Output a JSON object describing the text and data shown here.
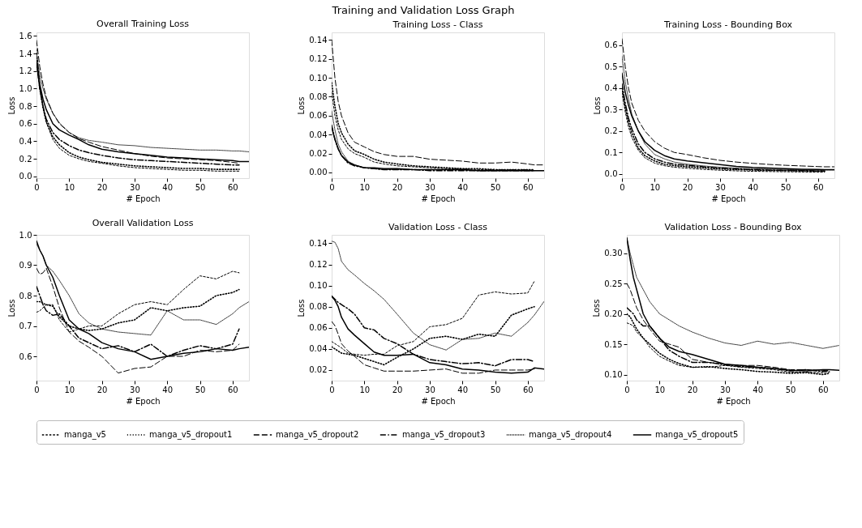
{
  "chart_data": [
    {
      "type": "line",
      "title": "Overall Training Loss",
      "xlabel": "# Epoch",
      "ylabel": "Loss",
      "annotations": [
        "Training and Validation Loss Graph"
      ],
      "legend": "bottom",
      "x": [
        0,
        1,
        2,
        3,
        5,
        7,
        10,
        13,
        16,
        20,
        25,
        30,
        35,
        40,
        45,
        50,
        55,
        60,
        62,
        65
      ],
      "xlim": [
        0,
        65
      ],
      "xticks": [
        0,
        10,
        20,
        30,
        40,
        50,
        60
      ],
      "ylim": [
        -0.02,
        1.64
      ],
      "yticks": [
        {
          "value": 0,
          "label": "0.0"
        },
        0.2,
        0.4,
        0.6,
        0.8,
        {
          "value": 1,
          "label": "1.0"
        },
        1.2,
        1.4,
        1.6
      ],
      "series": [
        {
          "name": "manga_v5",
          "color": "#000000",
          "line_style": "dashed",
          "values": [
            1.45,
            1.05,
            0.8,
            0.62,
            0.42,
            0.32,
            0.24,
            0.2,
            0.17,
            0.15,
            0.12,
            0.1,
            0.09,
            0.08,
            0.07,
            0.07,
            0.06,
            0.06,
            0.06,
            null
          ]
        },
        {
          "name": "manga_v5_dropout1",
          "color": "#000000",
          "line_style": "dotted",
          "values": [
            1.35,
            1.0,
            0.78,
            0.62,
            0.45,
            0.36,
            0.27,
            0.22,
            0.19,
            0.16,
            0.14,
            0.12,
            0.11,
            0.1,
            0.09,
            0.09,
            0.08,
            0.08,
            0.08,
            null
          ]
        },
        {
          "name": "manga_v5_dropout2",
          "color": "#000000",
          "line_style": "longdash",
          "values": [
            1.55,
            1.25,
            1.05,
            0.9,
            0.72,
            0.6,
            0.5,
            0.43,
            0.39,
            0.34,
            0.3,
            0.26,
            0.23,
            0.21,
            0.2,
            0.19,
            0.18,
            0.16,
            0.15,
            null
          ]
        },
        {
          "name": "manga_v5_dropout3",
          "color": "#000000",
          "line_style": "dashdot",
          "values": [
            1.3,
            1.0,
            0.8,
            0.65,
            0.5,
            0.42,
            0.35,
            0.3,
            0.27,
            0.24,
            0.21,
            0.19,
            0.18,
            0.17,
            0.16,
            0.15,
            0.14,
            0.13,
            0.13,
            null
          ]
        },
        {
          "name": "manga_v5_dropout4",
          "color": "#000000",
          "line_style": "finedotted",
          "values": [
            1.4,
            1.15,
            1.0,
            0.88,
            0.72,
            0.61,
            0.5,
            0.44,
            0.41,
            0.39,
            0.36,
            0.35,
            0.33,
            0.32,
            0.31,
            0.3,
            0.3,
            0.29,
            0.29,
            0.28
          ]
        },
        {
          "name": "manga_v5_dropout5",
          "color": "#000000",
          "line_style": "solid",
          "values": [
            1.3,
            1.05,
            0.88,
            0.76,
            0.6,
            0.53,
            0.47,
            0.42,
            0.36,
            0.31,
            0.28,
            0.26,
            0.24,
            0.22,
            0.21,
            0.2,
            0.19,
            0.18,
            0.17,
            0.17
          ]
        }
      ]
    },
    {
      "type": "line",
      "title": "Training Loss - Class",
      "xlabel": "# Epoch",
      "ylabel": "Loss",
      "x": [
        0,
        1,
        2,
        3,
        5,
        7,
        10,
        13,
        16,
        20,
        25,
        30,
        35,
        40,
        45,
        50,
        55,
        60,
        62,
        65
      ],
      "xlim": [
        0,
        65
      ],
      "xticks": [
        0,
        10,
        20,
        30,
        40,
        50,
        60
      ],
      "ylim": [
        -0.006,
        0.148
      ],
      "yticks": [
        {
          "value": 0,
          "label": "0.00"
        },
        {
          "value": 0.02,
          "label": "0.02"
        },
        {
          "value": 0.04,
          "label": "0.04"
        },
        {
          "value": 0.06,
          "label": "0.06"
        },
        {
          "value": 0.08,
          "label": "0.08"
        },
        {
          "value": 0.1,
          "label": "0.10"
        },
        {
          "value": 0.12,
          "label": "0.12"
        },
        {
          "value": 0.14,
          "label": "0.14"
        }
      ],
      "series": [
        {
          "name": "manga_v5",
          "color": "#000000",
          "line_style": "dashed",
          "values": [
            0.085,
            0.06,
            0.045,
            0.035,
            0.025,
            0.02,
            0.016,
            0.011,
            0.009,
            0.007,
            0.006,
            0.005,
            0.004,
            0.004,
            0.003,
            0.003,
            0.003,
            0.003,
            0.002,
            null
          ]
        },
        {
          "name": "manga_v5_dropout1",
          "color": "#000000",
          "line_style": "dotted",
          "values": [
            0.095,
            0.07,
            0.052,
            0.042,
            0.03,
            0.023,
            0.019,
            0.014,
            0.011,
            0.009,
            0.007,
            0.006,
            0.005,
            0.004,
            0.004,
            0.003,
            0.003,
            0.003,
            0.003,
            null
          ]
        },
        {
          "name": "manga_v5_dropout2",
          "color": "#000000",
          "line_style": "longdash",
          "values": [
            0.14,
            0.1,
            0.075,
            0.06,
            0.042,
            0.032,
            0.027,
            0.022,
            0.019,
            0.017,
            0.017,
            0.014,
            0.013,
            0.012,
            0.01,
            0.01,
            0.011,
            0.009,
            0.008,
            0.008
          ]
        },
        {
          "name": "manga_v5_dropout3",
          "color": "#000000",
          "line_style": "dashdot",
          "values": [
            0.05,
            0.035,
            0.025,
            0.018,
            0.01,
            0.007,
            0.005,
            0.004,
            0.003,
            0.003,
            0.003,
            0.002,
            0.002,
            0.002,
            0.002,
            0.002,
            0.002,
            0.002,
            0.002,
            null
          ]
        },
        {
          "name": "manga_v5_dropout4",
          "color": "#000000",
          "line_style": "finedotted",
          "values": [
            0.065,
            0.045,
            0.03,
            0.022,
            0.012,
            0.008,
            0.005,
            0.004,
            0.003,
            0.003,
            0.003,
            0.003,
            0.003,
            0.003,
            0.002,
            0.002,
            0.002,
            0.002,
            0.002,
            0.002
          ]
        },
        {
          "name": "manga_v5_dropout5",
          "color": "#000000",
          "line_style": "solid",
          "values": [
            0.048,
            0.035,
            0.025,
            0.018,
            0.011,
            0.008,
            0.005,
            0.005,
            0.004,
            0.004,
            0.003,
            0.003,
            0.003,
            0.003,
            0.002,
            0.002,
            0.002,
            0.002,
            0.002,
            0.002
          ]
        }
      ]
    },
    {
      "type": "line",
      "title": "Training Loss - Bounding Box",
      "xlabel": "# Epoch",
      "ylabel": "Loss",
      "x": [
        0,
        1,
        2,
        3,
        5,
        7,
        10,
        13,
        16,
        20,
        25,
        30,
        35,
        40,
        45,
        50,
        55,
        60,
        62,
        65
      ],
      "xlim": [
        0,
        65
      ],
      "xticks": [
        0,
        10,
        20,
        30,
        40,
        50,
        60
      ],
      "ylim": [
        -0.02,
        0.66
      ],
      "yticks": [
        {
          "value": 0,
          "label": "0.0"
        },
        0.1,
        0.2,
        0.3,
        0.4,
        0.5,
        0.6
      ],
      "series": [
        {
          "name": "manga_v5",
          "color": "#000000",
          "line_style": "dashed",
          "values": [
            0.38,
            0.29,
            0.22,
            0.17,
            0.11,
            0.075,
            0.05,
            0.038,
            0.031,
            0.026,
            0.021,
            0.017,
            0.014,
            0.012,
            0.011,
            0.01,
            0.009,
            0.008,
            0.008,
            null
          ]
        },
        {
          "name": "manga_v5_dropout1",
          "color": "#000000",
          "line_style": "dotted",
          "values": [
            0.4,
            0.31,
            0.24,
            0.19,
            0.12,
            0.085,
            0.06,
            0.045,
            0.038,
            0.033,
            0.028,
            0.023,
            0.02,
            0.018,
            0.016,
            0.015,
            0.014,
            0.013,
            0.013,
            null
          ]
        },
        {
          "name": "manga_v5_dropout2",
          "color": "#000000",
          "line_style": "longdash",
          "values": [
            0.63,
            0.5,
            0.4,
            0.33,
            0.25,
            0.2,
            0.15,
            0.12,
            0.1,
            0.09,
            0.075,
            0.063,
            0.055,
            0.049,
            0.044,
            0.04,
            0.037,
            0.034,
            0.033,
            0.033
          ]
        },
        {
          "name": "manga_v5_dropout3",
          "color": "#000000",
          "line_style": "dashdot",
          "values": [
            0.42,
            0.33,
            0.26,
            0.21,
            0.14,
            0.1,
            0.07,
            0.055,
            0.045,
            0.04,
            0.033,
            0.027,
            0.023,
            0.02,
            0.018,
            0.016,
            0.015,
            0.014,
            0.013,
            null
          ]
        },
        {
          "name": "manga_v5_dropout4",
          "color": "#000000",
          "line_style": "finedotted",
          "values": [
            0.55,
            0.43,
            0.35,
            0.28,
            0.2,
            0.14,
            0.09,
            0.07,
            0.055,
            0.045,
            0.037,
            0.031,
            0.027,
            0.024,
            0.022,
            0.02,
            0.019,
            0.018,
            0.018,
            0.018
          ]
        },
        {
          "name": "manga_v5_dropout5",
          "color": "#000000",
          "line_style": "solid",
          "values": [
            0.47,
            0.38,
            0.32,
            0.27,
            0.2,
            0.15,
            0.11,
            0.085,
            0.07,
            0.06,
            0.052,
            0.043,
            0.035,
            0.03,
            0.027,
            0.024,
            0.022,
            0.021,
            0.02,
            0.02
          ]
        }
      ]
    },
    {
      "type": "line",
      "title": "Overall Validation Loss",
      "xlabel": "# Epoch",
      "ylabel": "Loss",
      "x": [
        0,
        1,
        2,
        3,
        5,
        7,
        10,
        13,
        16,
        20,
        25,
        30,
        35,
        40,
        45,
        50,
        55,
        60,
        62,
        65
      ],
      "xlim": [
        0,
        65
      ],
      "xticks": [
        0,
        10,
        20,
        30,
        40,
        50,
        60
      ],
      "ylim": [
        0.52,
        1.0
      ],
      "yticks": [
        0.6,
        0.7,
        0.8,
        0.9,
        {
          "value": 1,
          "label": "1.0"
        }
      ],
      "series": [
        {
          "name": "manga_v5",
          "color": "#000000",
          "line_style": "dashed",
          "values": [
            0.745,
            0.75,
            0.76,
            0.77,
            0.77,
            0.72,
            0.68,
            0.69,
            0.7,
            0.7,
            0.74,
            0.77,
            0.78,
            0.77,
            0.82,
            0.865,
            0.855,
            0.88,
            0.875,
            null
          ]
        },
        {
          "name": "manga_v5_dropout1",
          "color": "#000000",
          "line_style": "dotted",
          "values": [
            0.78,
            0.78,
            0.775,
            0.77,
            0.765,
            0.73,
            0.7,
            0.69,
            0.685,
            0.69,
            0.71,
            0.72,
            0.76,
            0.75,
            0.76,
            0.765,
            0.8,
            0.81,
            0.82,
            null
          ]
        },
        {
          "name": "manga_v5_dropout2",
          "color": "#000000",
          "line_style": "longdash",
          "values": [
            0.89,
            0.87,
            0.875,
            0.89,
            0.83,
            0.76,
            0.68,
            0.65,
            0.63,
            0.6,
            0.545,
            0.56,
            0.565,
            0.6,
            0.6,
            0.62,
            0.615,
            0.62,
            0.64,
            null
          ]
        },
        {
          "name": "manga_v5_dropout3",
          "color": "#000000",
          "line_style": "dashdot",
          "values": [
            0.83,
            0.8,
            0.77,
            0.75,
            0.735,
            0.74,
            0.7,
            0.66,
            0.645,
            0.625,
            0.635,
            0.615,
            0.64,
            0.6,
            0.62,
            0.635,
            0.625,
            0.64,
            0.69,
            null
          ]
        },
        {
          "name": "manga_v5_dropout4",
          "color": "#000000",
          "line_style": "finedotted",
          "values": [
            0.97,
            0.95,
            0.93,
            0.9,
            0.88,
            0.85,
            0.8,
            0.74,
            0.71,
            0.69,
            0.68,
            0.675,
            0.67,
            0.75,
            0.72,
            0.72,
            0.705,
            0.74,
            0.76,
            0.78
          ]
        },
        {
          "name": "manga_v5_dropout5",
          "color": "#000000",
          "line_style": "solid",
          "values": [
            0.98,
            0.95,
            0.93,
            0.9,
            0.86,
            0.8,
            0.72,
            0.69,
            0.675,
            0.645,
            0.625,
            0.615,
            0.59,
            0.6,
            0.61,
            0.615,
            0.625,
            0.62,
            0.625,
            0.63
          ]
        }
      ]
    },
    {
      "type": "line",
      "title": "Validation Loss - Class",
      "xlabel": "# Epoch",
      "ylabel": "Loss",
      "x": [
        0,
        1,
        2,
        3,
        5,
        7,
        10,
        13,
        16,
        20,
        25,
        30,
        35,
        40,
        45,
        50,
        55,
        60,
        62,
        65
      ],
      "xlim": [
        0,
        65
      ],
      "xticks": [
        0,
        10,
        20,
        30,
        40,
        50,
        60
      ],
      "ylim": [
        0.01,
        0.148
      ],
      "yticks": [
        {
          "value": 0.02,
          "label": "0.02"
        },
        {
          "value": 0.04,
          "label": "0.04"
        },
        {
          "value": 0.06,
          "label": "0.06"
        },
        {
          "value": 0.08,
          "label": "0.08"
        },
        {
          "value": 0.1,
          "label": "0.10"
        },
        {
          "value": 0.12,
          "label": "0.12"
        },
        {
          "value": 0.14,
          "label": "0.14"
        }
      ],
      "series": [
        {
          "name": "manga_v5",
          "color": "#000000",
          "line_style": "dashed",
          "values": [
            0.047,
            0.045,
            0.043,
            0.041,
            0.036,
            0.035,
            0.034,
            0.035,
            0.035,
            0.043,
            0.047,
            0.061,
            0.063,
            0.069,
            0.091,
            0.094,
            0.092,
            0.093,
            0.104,
            null
          ]
        },
        {
          "name": "manga_v5_dropout1",
          "color": "#000000",
          "line_style": "dotted",
          "values": [
            0.042,
            0.04,
            0.038,
            0.036,
            0.035,
            0.034,
            0.031,
            0.028,
            0.025,
            0.032,
            0.04,
            0.05,
            0.052,
            0.049,
            0.054,
            0.052,
            0.072,
            0.078,
            0.08,
            null
          ]
        },
        {
          "name": "manga_v5_dropout2",
          "color": "#000000",
          "line_style": "longdash",
          "values": [
            0.066,
            0.062,
            0.054,
            0.045,
            0.038,
            0.033,
            0.025,
            0.022,
            0.019,
            0.019,
            0.019,
            0.02,
            0.021,
            0.017,
            0.017,
            0.02,
            0.02,
            0.02,
            0.021,
            null
          ]
        },
        {
          "name": "manga_v5_dropout3",
          "color": "#000000",
          "line_style": "dashdot",
          "values": [
            0.09,
            0.087,
            0.084,
            0.082,
            0.078,
            0.073,
            0.06,
            0.058,
            0.05,
            0.045,
            0.035,
            0.03,
            0.028,
            0.026,
            0.027,
            0.024,
            0.03,
            0.03,
            0.028,
            null
          ]
        },
        {
          "name": "manga_v5_dropout4",
          "color": "#000000",
          "line_style": "finedotted",
          "values": [
            0.142,
            0.141,
            0.135,
            0.123,
            0.115,
            0.11,
            0.102,
            0.095,
            0.087,
            0.073,
            0.055,
            0.044,
            0.039,
            0.049,
            0.05,
            0.055,
            0.052,
            0.065,
            0.072,
            0.085
          ]
        },
        {
          "name": "manga_v5_dropout5",
          "color": "#000000",
          "line_style": "solid",
          "values": [
            0.09,
            0.086,
            0.08,
            0.07,
            0.059,
            0.053,
            0.045,
            0.037,
            0.034,
            0.034,
            0.035,
            0.027,
            0.025,
            0.021,
            0.02,
            0.018,
            0.017,
            0.018,
            0.022,
            0.021
          ]
        }
      ]
    },
    {
      "type": "line",
      "title": "Validation Loss - Bounding Box",
      "xlabel": "# Epoch",
      "ylabel": "Loss",
      "x": [
        0,
        1,
        2,
        3,
        5,
        7,
        10,
        13,
        16,
        20,
        25,
        30,
        35,
        40,
        45,
        50,
        55,
        60,
        62,
        65
      ],
      "xlim": [
        0,
        65
      ],
      "xticks": [
        0,
        10,
        20,
        30,
        40,
        50,
        60
      ],
      "ylim": [
        0.09,
        0.33
      ],
      "yticks": [
        {
          "value": 0.1,
          "label": "0.10"
        },
        0.15,
        {
          "value": 0.2,
          "label": "0.20"
        },
        0.25,
        {
          "value": 0.3,
          "label": "0.30"
        }
      ],
      "series": [
        {
          "name": "manga_v5",
          "color": "#000000",
          "line_style": "dashed",
          "values": [
            0.185,
            0.183,
            0.18,
            0.17,
            0.16,
            0.145,
            0.13,
            0.122,
            0.115,
            0.112,
            0.112,
            0.115,
            0.112,
            0.11,
            0.108,
            0.104,
            0.104,
            0.103,
            0.104,
            null
          ]
        },
        {
          "name": "manga_v5_dropout1",
          "color": "#000000",
          "line_style": "dotted",
          "values": [
            0.2,
            0.195,
            0.185,
            0.175,
            0.16,
            0.15,
            0.135,
            0.125,
            0.118,
            0.112,
            0.113,
            0.11,
            0.108,
            0.105,
            0.104,
            0.102,
            0.103,
            0.1,
            0.102,
            null
          ]
        },
        {
          "name": "manga_v5_dropout2",
          "color": "#000000",
          "line_style": "longdash",
          "values": [
            0.25,
            0.24,
            0.225,
            0.21,
            0.19,
            0.175,
            0.155,
            0.15,
            0.145,
            0.125,
            0.12,
            0.117,
            0.115,
            0.115,
            0.112,
            0.108,
            0.108,
            0.107,
            0.105,
            null
          ]
        },
        {
          "name": "manga_v5_dropout3",
          "color": "#000000",
          "line_style": "dashdot",
          "values": [
            0.21,
            0.205,
            0.2,
            0.19,
            0.18,
            0.18,
            0.16,
            0.14,
            0.13,
            0.12,
            0.12,
            0.116,
            0.113,
            0.112,
            0.11,
            0.106,
            0.108,
            0.105,
            0.107,
            null
          ]
        },
        {
          "name": "manga_v5_dropout4",
          "color": "#000000",
          "line_style": "finedotted",
          "values": [
            0.325,
            0.3,
            0.28,
            0.26,
            0.24,
            0.22,
            0.2,
            0.19,
            0.18,
            0.17,
            0.16,
            0.152,
            0.148,
            0.155,
            0.15,
            0.153,
            0.148,
            0.143,
            0.145,
            0.148
          ]
        },
        {
          "name": "manga_v5_dropout5",
          "color": "#000000",
          "line_style": "solid",
          "values": [
            0.325,
            0.29,
            0.26,
            0.24,
            0.2,
            0.18,
            0.16,
            0.145,
            0.138,
            0.133,
            0.125,
            0.117,
            0.115,
            0.112,
            0.11,
            0.107,
            0.106,
            0.108,
            0.108,
            0.107
          ]
        }
      ]
    }
  ]
}
